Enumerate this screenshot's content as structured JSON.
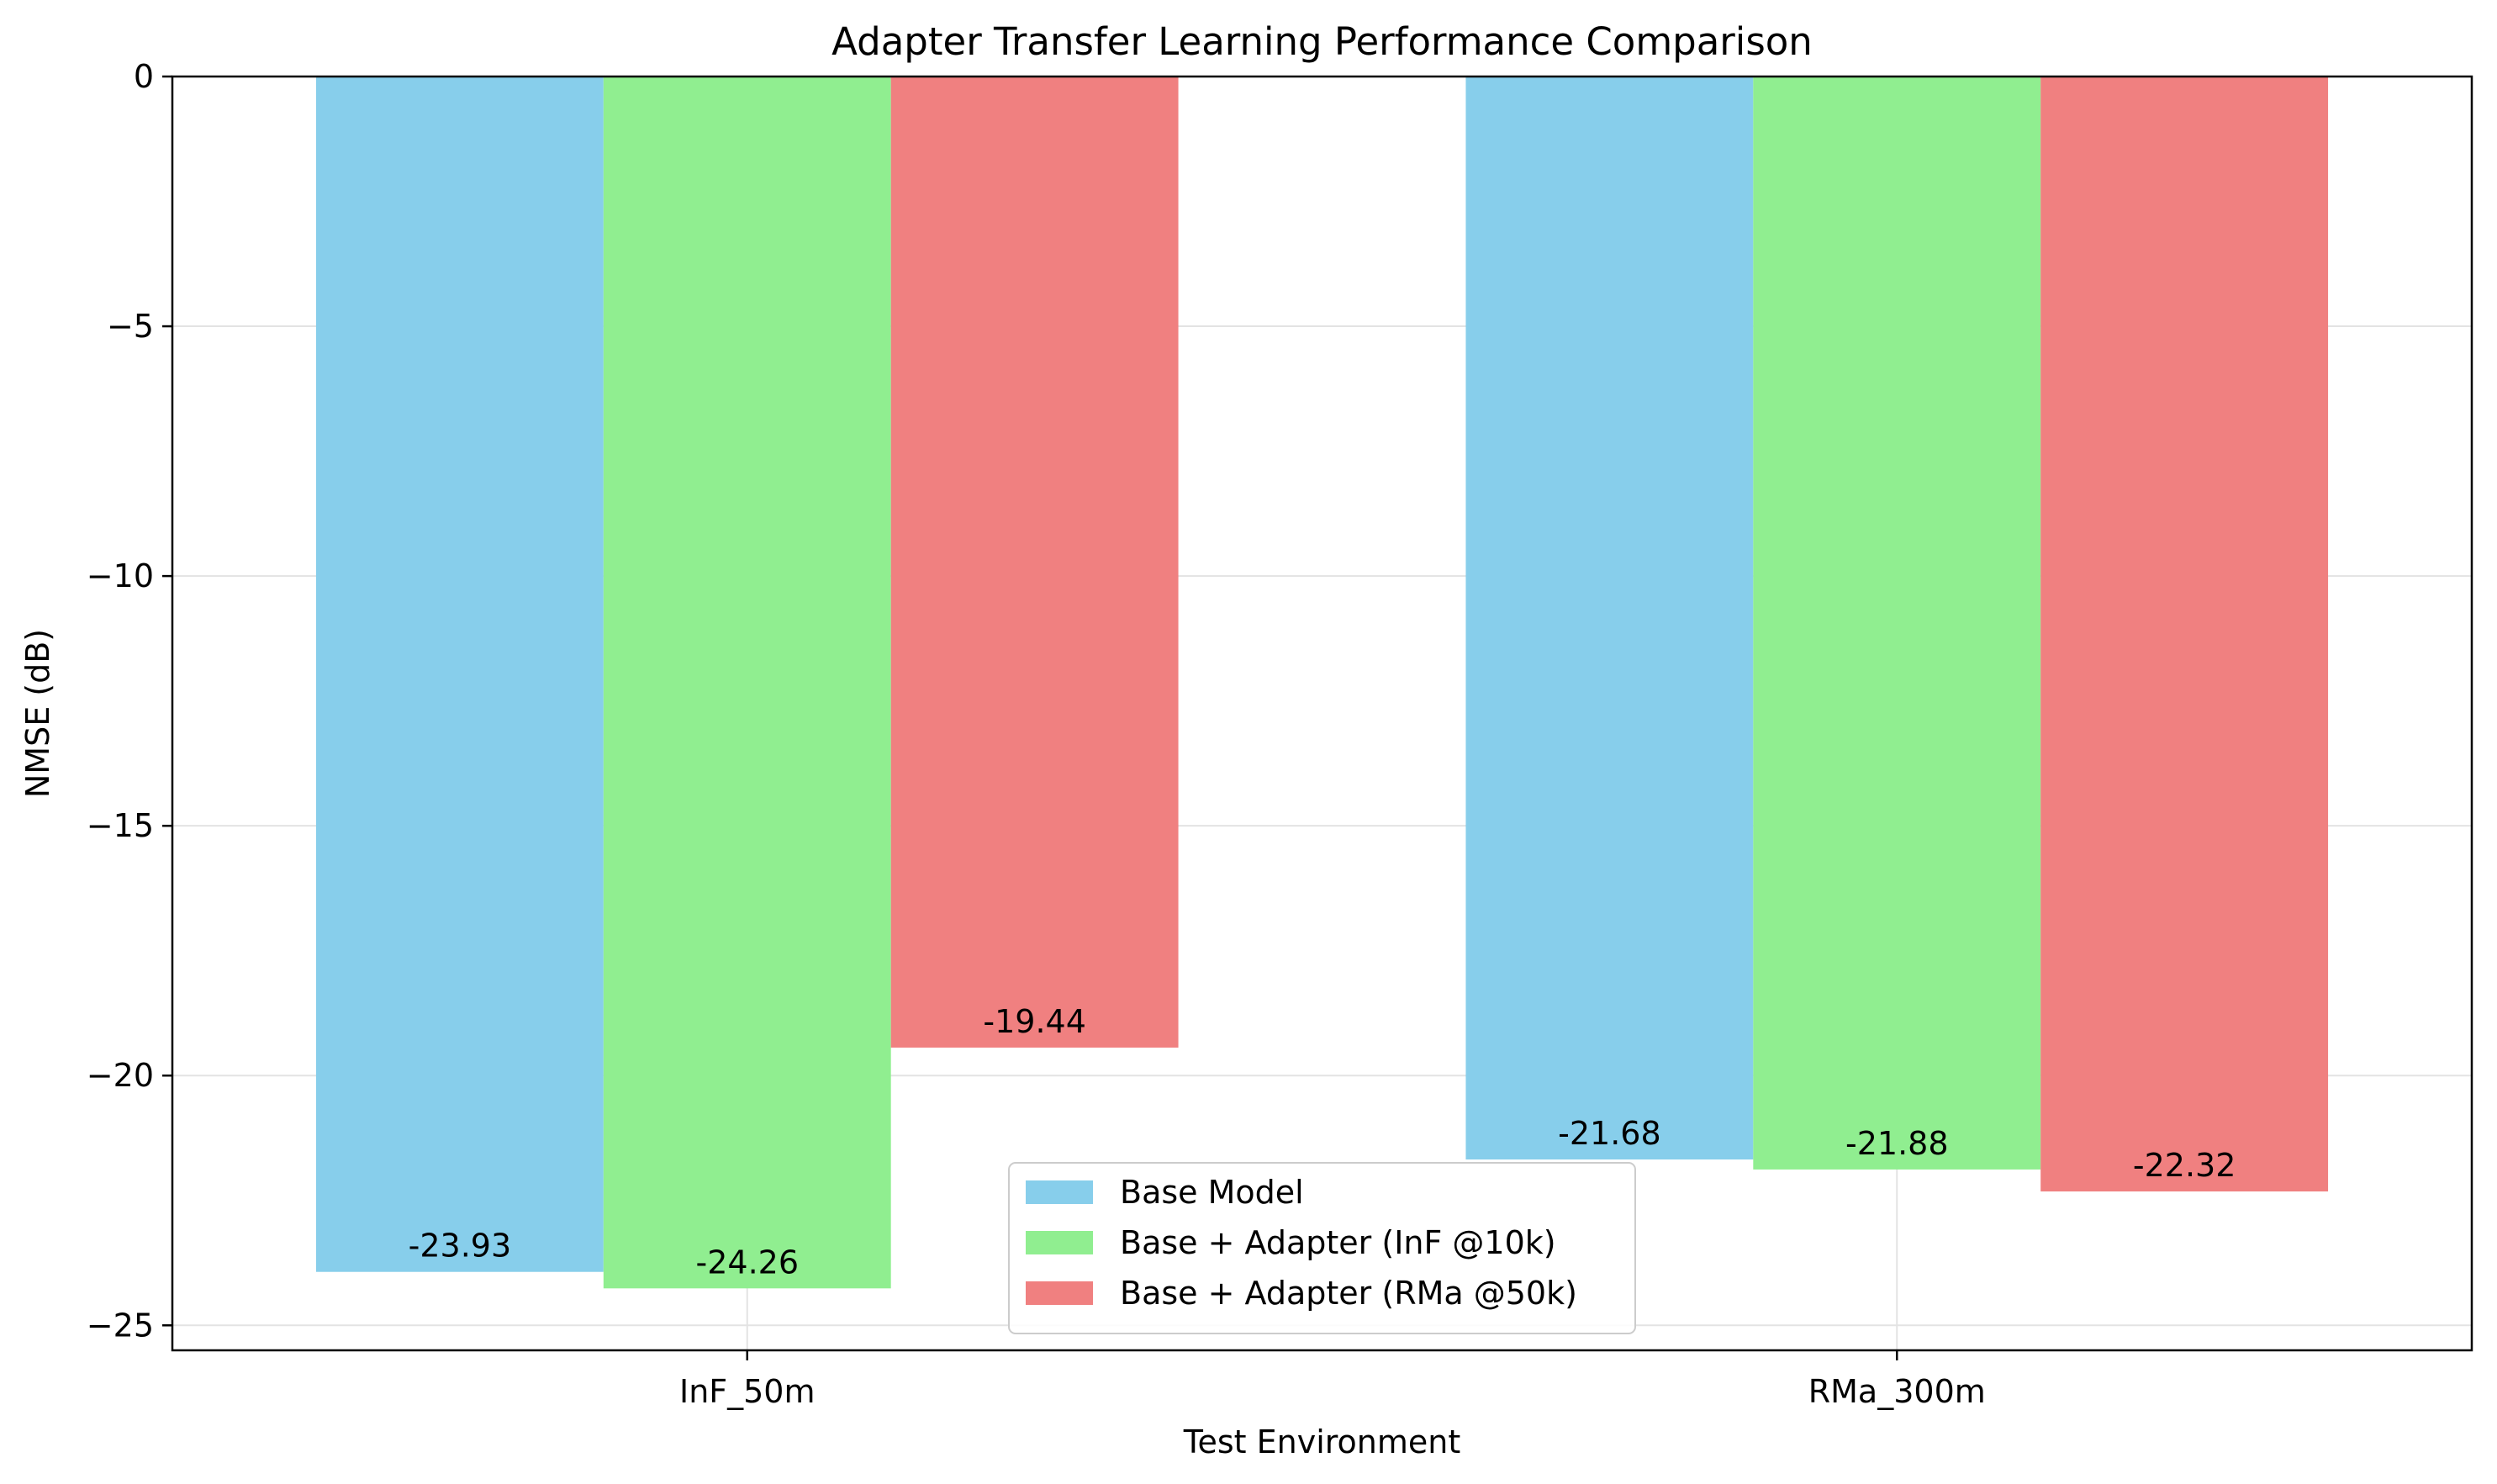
{
  "chart_data": {
    "type": "bar",
    "title": "Adapter Transfer Learning Performance Comparison",
    "xlabel": "Test Environment",
    "ylabel": "NMSE (dB)",
    "categories": [
      "InF_50m",
      "RMa_300m"
    ],
    "series": [
      {
        "name": "Base Model",
        "values": [
          -23.93,
          -21.68
        ],
        "labels": [
          "-23.93",
          "-21.68"
        ],
        "color": "#87CEEB"
      },
      {
        "name": "Base + Adapter (InF @10k)",
        "values": [
          -24.26,
          -21.88
        ],
        "labels": [
          "-24.26",
          "-21.88"
        ],
        "color": "#90EE90"
      },
      {
        "name": "Base + Adapter (RMa @50k)",
        "values": [
          -19.44,
          -22.32
        ],
        "labels": [
          "-19.44",
          "-22.32"
        ],
        "color": "#F08080"
      }
    ],
    "ylim": [
      -25.5,
      0
    ],
    "yticks": [
      0,
      -5,
      -10,
      -15,
      -20,
      -25
    ],
    "ytick_labels": [
      "0",
      "−5",
      "−10",
      "−15",
      "−20",
      "−25"
    ],
    "grid": true,
    "legend_position": "lower-center"
  }
}
